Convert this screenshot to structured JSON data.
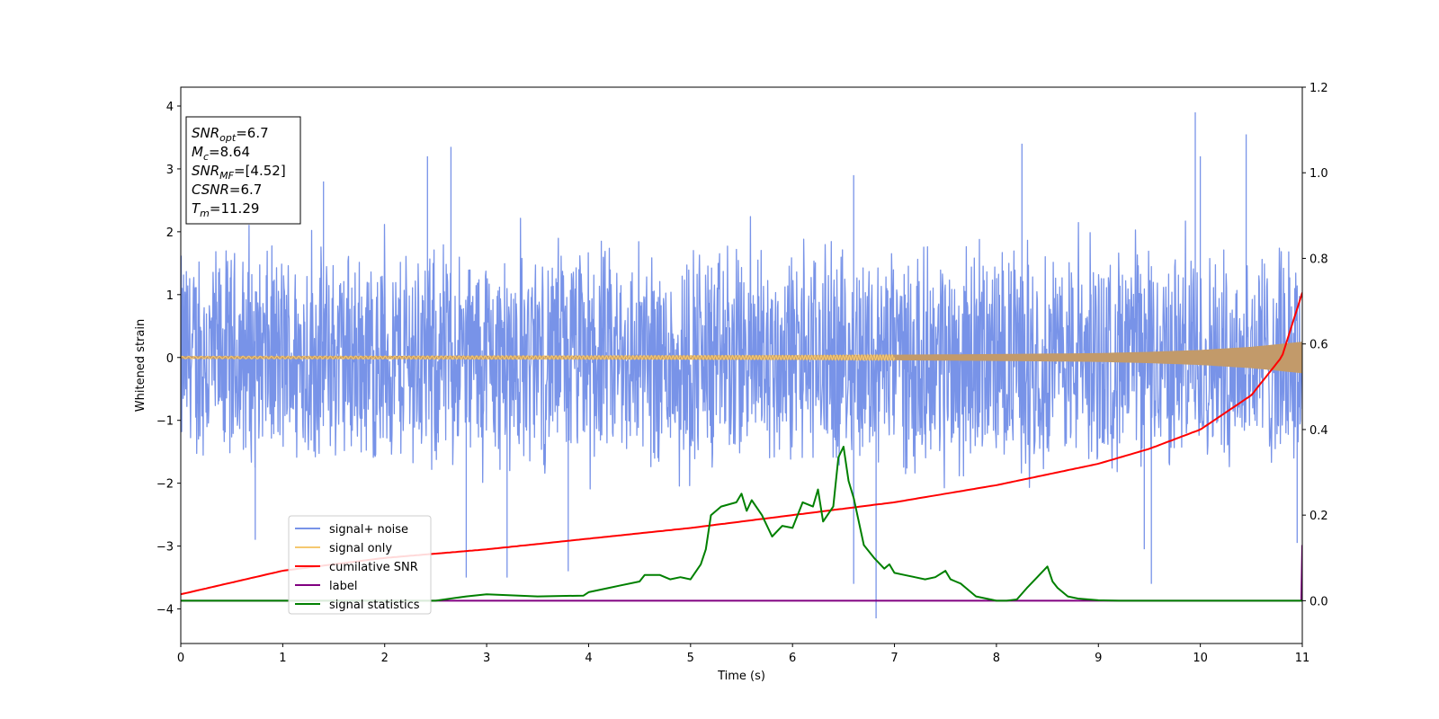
{
  "chart_data": {
    "type": "line",
    "xlabel": "Time (s)",
    "ylabel": "Whitened strain",
    "xlim": [
      0,
      11
    ],
    "ylim": [
      -4.55,
      4.3
    ],
    "y2lim": [
      -0.1,
      1.2
    ],
    "x_ticks": [
      "0",
      "1",
      "2",
      "3",
      "4",
      "5",
      "6",
      "7",
      "8",
      "9",
      "10",
      "11"
    ],
    "y_ticks": [
      "4",
      "3",
      "2",
      "1",
      "0",
      "−1",
      "−2",
      "−3",
      "−4"
    ],
    "y2_ticks": [
      "1.2",
      "1.0",
      "0.8",
      "0.6",
      "0.4",
      "0.2",
      "0.0"
    ],
    "legend_position": "lower-left",
    "grid": false,
    "textbox": {
      "lines": [
        {
          "sym": "SNR",
          "sub": "opt",
          "val": "=6.7"
        },
        {
          "sym": "M",
          "sub": "c",
          "val": "=8.64"
        },
        {
          "sym": "SNR",
          "sub": "MF",
          "val": "=[4.52]"
        },
        {
          "sym": "CSNR",
          "sub": "",
          "val": "=6.7"
        },
        {
          "sym": "T",
          "sub": "m",
          "val": "=11.29"
        }
      ]
    },
    "series": [
      {
        "name": "signal+ noise",
        "color": "#7893e8",
        "axis": "left",
        "envelope_approx": {
          "typical_upper": 1.9,
          "typical_lower": -1.9
        },
        "notable_peaks": [
          [
            1.4,
            2.8
          ],
          [
            2.42,
            3.2
          ],
          [
            2.65,
            3.35
          ],
          [
            6.6,
            2.9
          ],
          [
            8.25,
            3.4
          ],
          [
            9.95,
            3.9
          ],
          [
            10.45,
            3.55
          ],
          [
            10.0,
            3.2
          ]
        ],
        "notable_troughs": [
          [
            0.73,
            -2.9
          ],
          [
            2.8,
            -3.5
          ],
          [
            3.2,
            -3.5
          ],
          [
            3.8,
            -3.4
          ],
          [
            6.6,
            -3.6
          ],
          [
            6.82,
            -4.15
          ],
          [
            9.45,
            -3.05
          ],
          [
            9.52,
            -3.6
          ],
          [
            10.95,
            -2.95
          ]
        ]
      },
      {
        "name": "signal only",
        "color": "#f5c870",
        "axis": "left",
        "amplitude": {
          "x": [
            0,
            2,
            4,
            6,
            7,
            8,
            9,
            9.5,
            10,
            10.5,
            11
          ],
          "y": [
            0.02,
            0.025,
            0.03,
            0.035,
            0.045,
            0.055,
            0.07,
            0.09,
            0.12,
            0.17,
            0.25
          ]
        }
      },
      {
        "name": "cumilative SNR",
        "color": "#ff0000",
        "axis": "right",
        "x": [
          0,
          1,
          2,
          3,
          4,
          5,
          6,
          7,
          8,
          9,
          9.5,
          10,
          10.5,
          10.8,
          11
        ],
        "y": [
          0.015,
          0.07,
          0.1,
          0.12,
          0.145,
          0.17,
          0.2,
          0.23,
          0.27,
          0.32,
          0.355,
          0.4,
          0.48,
          0.57,
          0.72
        ]
      },
      {
        "name": "label",
        "color": "#800080",
        "axis": "right",
        "x": [
          0,
          10.99,
          11
        ],
        "y": [
          0,
          0,
          0.13
        ]
      },
      {
        "name": "signal statistics",
        "color": "#008000",
        "axis": "right",
        "x": [
          0,
          1,
          2,
          2.5,
          2.8,
          3.0,
          3.5,
          3.95,
          4.0,
          4.2,
          4.3,
          4.5,
          4.55,
          4.7,
          4.8,
          4.9,
          5.0,
          5.1,
          5.15,
          5.2,
          5.3,
          5.45,
          5.5,
          5.55,
          5.6,
          5.7,
          5.8,
          5.9,
          6.0,
          6.1,
          6.2,
          6.25,
          6.3,
          6.4,
          6.45,
          6.5,
          6.55,
          6.6,
          6.7,
          6.8,
          6.9,
          6.95,
          7.0,
          7.1,
          7.2,
          7.3,
          7.4,
          7.5,
          7.55,
          7.6,
          7.65,
          7.7,
          7.8,
          7.9,
          8.0,
          8.1,
          8.2,
          8.3,
          8.4,
          8.5,
          8.55,
          8.6,
          8.7,
          8.8,
          9.0,
          9.2,
          9.5,
          10,
          11
        ],
        "y": [
          0,
          0,
          0,
          0.0,
          0.01,
          0.015,
          0.01,
          0.012,
          0.02,
          0.03,
          0.035,
          0.045,
          0.06,
          0.06,
          0.05,
          0.055,
          0.05,
          0.085,
          0.12,
          0.2,
          0.22,
          0.23,
          0.25,
          0.21,
          0.235,
          0.2,
          0.15,
          0.175,
          0.17,
          0.23,
          0.22,
          0.26,
          0.185,
          0.22,
          0.335,
          0.36,
          0.28,
          0.24,
          0.13,
          0.1,
          0.075,
          0.085,
          0.065,
          0.06,
          0.055,
          0.05,
          0.055,
          0.07,
          0.05,
          0.045,
          0.04,
          0.03,
          0.01,
          0.005,
          0.0,
          0.0,
          0.003,
          0.03,
          0.055,
          0.08,
          0.045,
          0.03,
          0.01,
          0.005,
          0.001,
          0,
          0,
          0,
          0
        ]
      }
    ]
  }
}
